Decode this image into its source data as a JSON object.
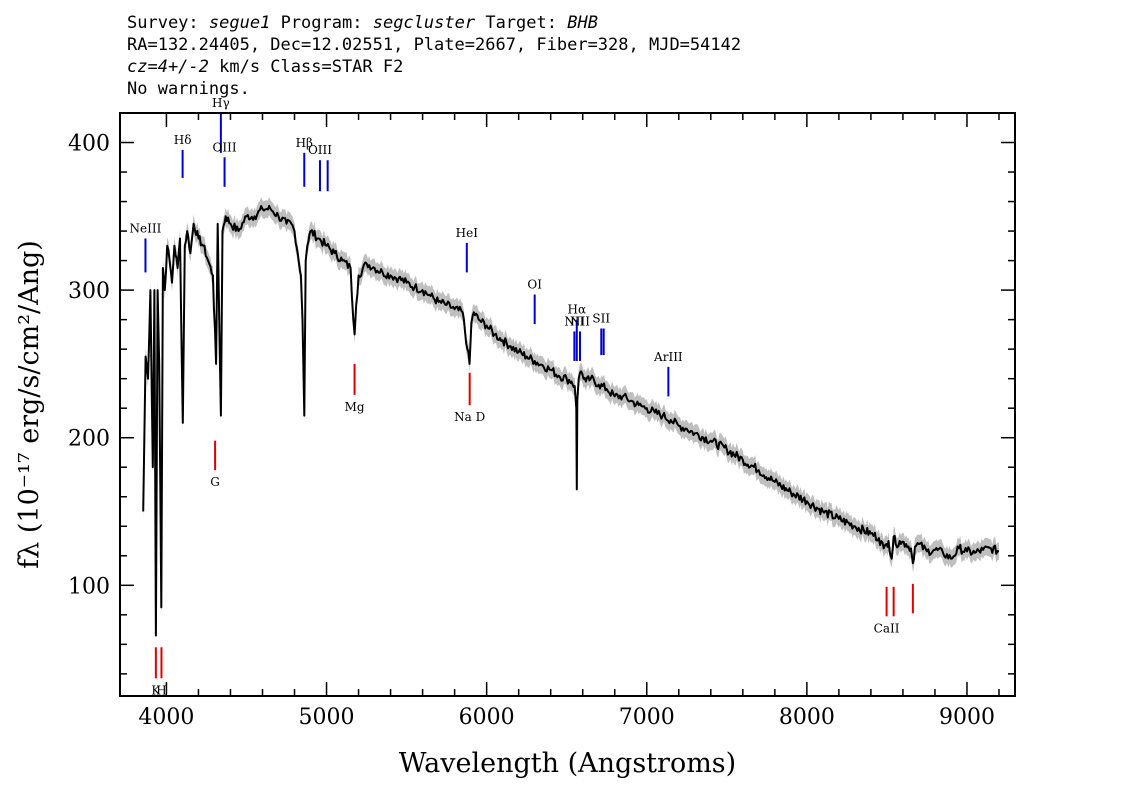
{
  "header": {
    "survey_label": "Survey:",
    "survey": "segue1",
    "program_label": "Program:",
    "program": "segcluster",
    "target_label": "Target:",
    "target": "BHB",
    "line2": "RA=132.24405, Dec=12.02551, Plate=2667, Fiber=328, MJD=54142",
    "cz": "cz=4+/-2",
    "line3_rest": " km/s Class=STAR F2",
    "line4": "No warnings."
  },
  "chart_data": {
    "type": "line",
    "xlabel": "Wavelength (Angstroms)",
    "ylabel": "fλ (10⁻¹⁷ erg/s/cm²/Ang)",
    "xlim": [
      3710,
      9300
    ],
    "ylim": [
      25,
      420
    ],
    "x_ticks": [
      4000,
      5000,
      6000,
      7000,
      8000,
      9000
    ],
    "y_ticks": [
      100,
      200,
      300,
      400
    ],
    "grid": false,
    "legend": "none",
    "colors": {
      "flux": "#000000",
      "error": "#bfbfbf",
      "emission": "#0000cc",
      "absorption": "#dd0000"
    },
    "series": [
      {
        "x": [
          3855,
          3870,
          3885,
          3900,
          3915,
          3925,
          3934,
          3945,
          3955,
          3968,
          3978,
          3990,
          4005,
          4020,
          4035,
          4050,
          4070,
          4085,
          4102,
          4115,
          4130,
          4150,
          4170,
          4200,
          4230,
          4260,
          4290,
          4310,
          4320,
          4340,
          4350,
          4370,
          4400,
          4450,
          4500,
          4550,
          4600,
          4650,
          4700,
          4750,
          4780,
          4800,
          4820,
          4840,
          4850,
          4861,
          4870,
          4880,
          4900,
          4950,
          5000,
          5050,
          5100,
          5150,
          5167,
          5175,
          5185,
          5200,
          5250,
          5300,
          5350,
          5400,
          5450,
          5500,
          5550,
          5600,
          5650,
          5700,
          5750,
          5800,
          5850,
          5880,
          5893,
          5905,
          5920,
          5950,
          6000,
          6050,
          6100,
          6150,
          6200,
          6250,
          6300,
          6350,
          6400,
          6450,
          6500,
          6530,
          6550,
          6560,
          6563,
          6566,
          6575,
          6590,
          6620,
          6650,
          6700,
          6750,
          6800,
          6850,
          6900,
          6950,
          7000,
          7050,
          7100,
          7150,
          7200,
          7250,
          7300,
          7400,
          7500,
          7600,
          7700,
          7800,
          7900,
          8000,
          8100,
          8200,
          8300,
          8400,
          8450,
          8480,
          8498,
          8510,
          8530,
          8542,
          8555,
          8580,
          8620,
          8650,
          8662,
          8675,
          8700,
          8750,
          8800,
          8850,
          8900,
          8950,
          9000,
          9050,
          9100,
          9150,
          9200
        ],
        "values": [
          150,
          255,
          240,
          300,
          180,
          300,
          66,
          300,
          250,
          85,
          315,
          300,
          330,
          320,
          305,
          330,
          315,
          335,
          210,
          330,
          340,
          325,
          345,
          335,
          330,
          320,
          310,
          250,
          345,
          215,
          340,
          350,
          345,
          340,
          350,
          350,
          355,
          355,
          350,
          345,
          345,
          340,
          325,
          310,
          280,
          215,
          320,
          330,
          340,
          335,
          330,
          325,
          320,
          315,
          280,
          270,
          290,
          310,
          318,
          315,
          312,
          310,
          308,
          305,
          302,
          300,
          296,
          292,
          290,
          287,
          285,
          260,
          250,
          278,
          285,
          280,
          276,
          270,
          266,
          262,
          258,
          255,
          252,
          249,
          246,
          242,
          240,
          238,
          235,
          220,
          165,
          225,
          240,
          245,
          238,
          240,
          236,
          233,
          228,
          228,
          225,
          222,
          220,
          217,
          215,
          212,
          208,
          206,
          203,
          198,
          192,
          185,
          178,
          170,
          163,
          157,
          150,
          145,
          140,
          135,
          132,
          125,
          128,
          130,
          118,
          133,
          128,
          130,
          128,
          125,
          115,
          126,
          128,
          123,
          124,
          122,
          118,
          125,
          123,
          122,
          124,
          125,
          123
        ]
      }
    ],
    "emission_lines": [
      {
        "label": "NeIII",
        "x": 3869,
        "y": [
          312,
          335
        ]
      },
      {
        "label": "Hδ",
        "x": 4101,
        "y": [
          376,
          395
        ]
      },
      {
        "label": "Hγ",
        "x": 4340,
        "y": [
          393,
          420
        ]
      },
      {
        "label": "OIII",
        "x": 4363,
        "y": [
          370,
          390
        ]
      },
      {
        "label": "Hβ",
        "x": 4861,
        "y": [
          370,
          393
        ]
      },
      {
        "label": "OIII",
        "x": 4959,
        "y": [
          367,
          388
        ]
      },
      {
        "label": "",
        "x": 5007,
        "y": [
          367,
          388
        ]
      },
      {
        "label": "HeI",
        "x": 5876,
        "y": [
          312,
          332
        ]
      },
      {
        "label": "OI",
        "x": 6300,
        "y": [
          277,
          297
        ]
      },
      {
        "label": "NII",
        "x": 6548,
        "y": [
          252,
          272
        ]
      },
      {
        "label": "Hα",
        "x": 6563,
        "y": [
          252,
          280
        ]
      },
      {
        "label": "NII",
        "x": 6583,
        "y": [
          252,
          272
        ]
      },
      {
        "label": "SII",
        "x": 6716,
        "y": [
          256,
          274
        ]
      },
      {
        "label": "",
        "x": 6731,
        "y": [
          256,
          274
        ]
      },
      {
        "label": "ArIII",
        "x": 7135,
        "y": [
          228,
          248
        ]
      }
    ],
    "absorption_lines": [
      {
        "label": "K",
        "x": 3934,
        "y": [
          37,
          58
        ]
      },
      {
        "label": "H",
        "x": 3969,
        "y": [
          37,
          58
        ]
      },
      {
        "label": "G",
        "x": 4304,
        "y": [
          178,
          198
        ]
      },
      {
        "label": "Mg",
        "x": 5175,
        "y": [
          229,
          250
        ]
      },
      {
        "label": "Na D",
        "x": 5894,
        "y": [
          222,
          244
        ]
      },
      {
        "label": "CaII",
        "x": 8498,
        "y": [
          79,
          99
        ]
      },
      {
        "label": "",
        "x": 8542,
        "y": [
          79,
          99
        ]
      },
      {
        "label": "",
        "x": 8662,
        "y": [
          81,
          101
        ]
      }
    ]
  }
}
